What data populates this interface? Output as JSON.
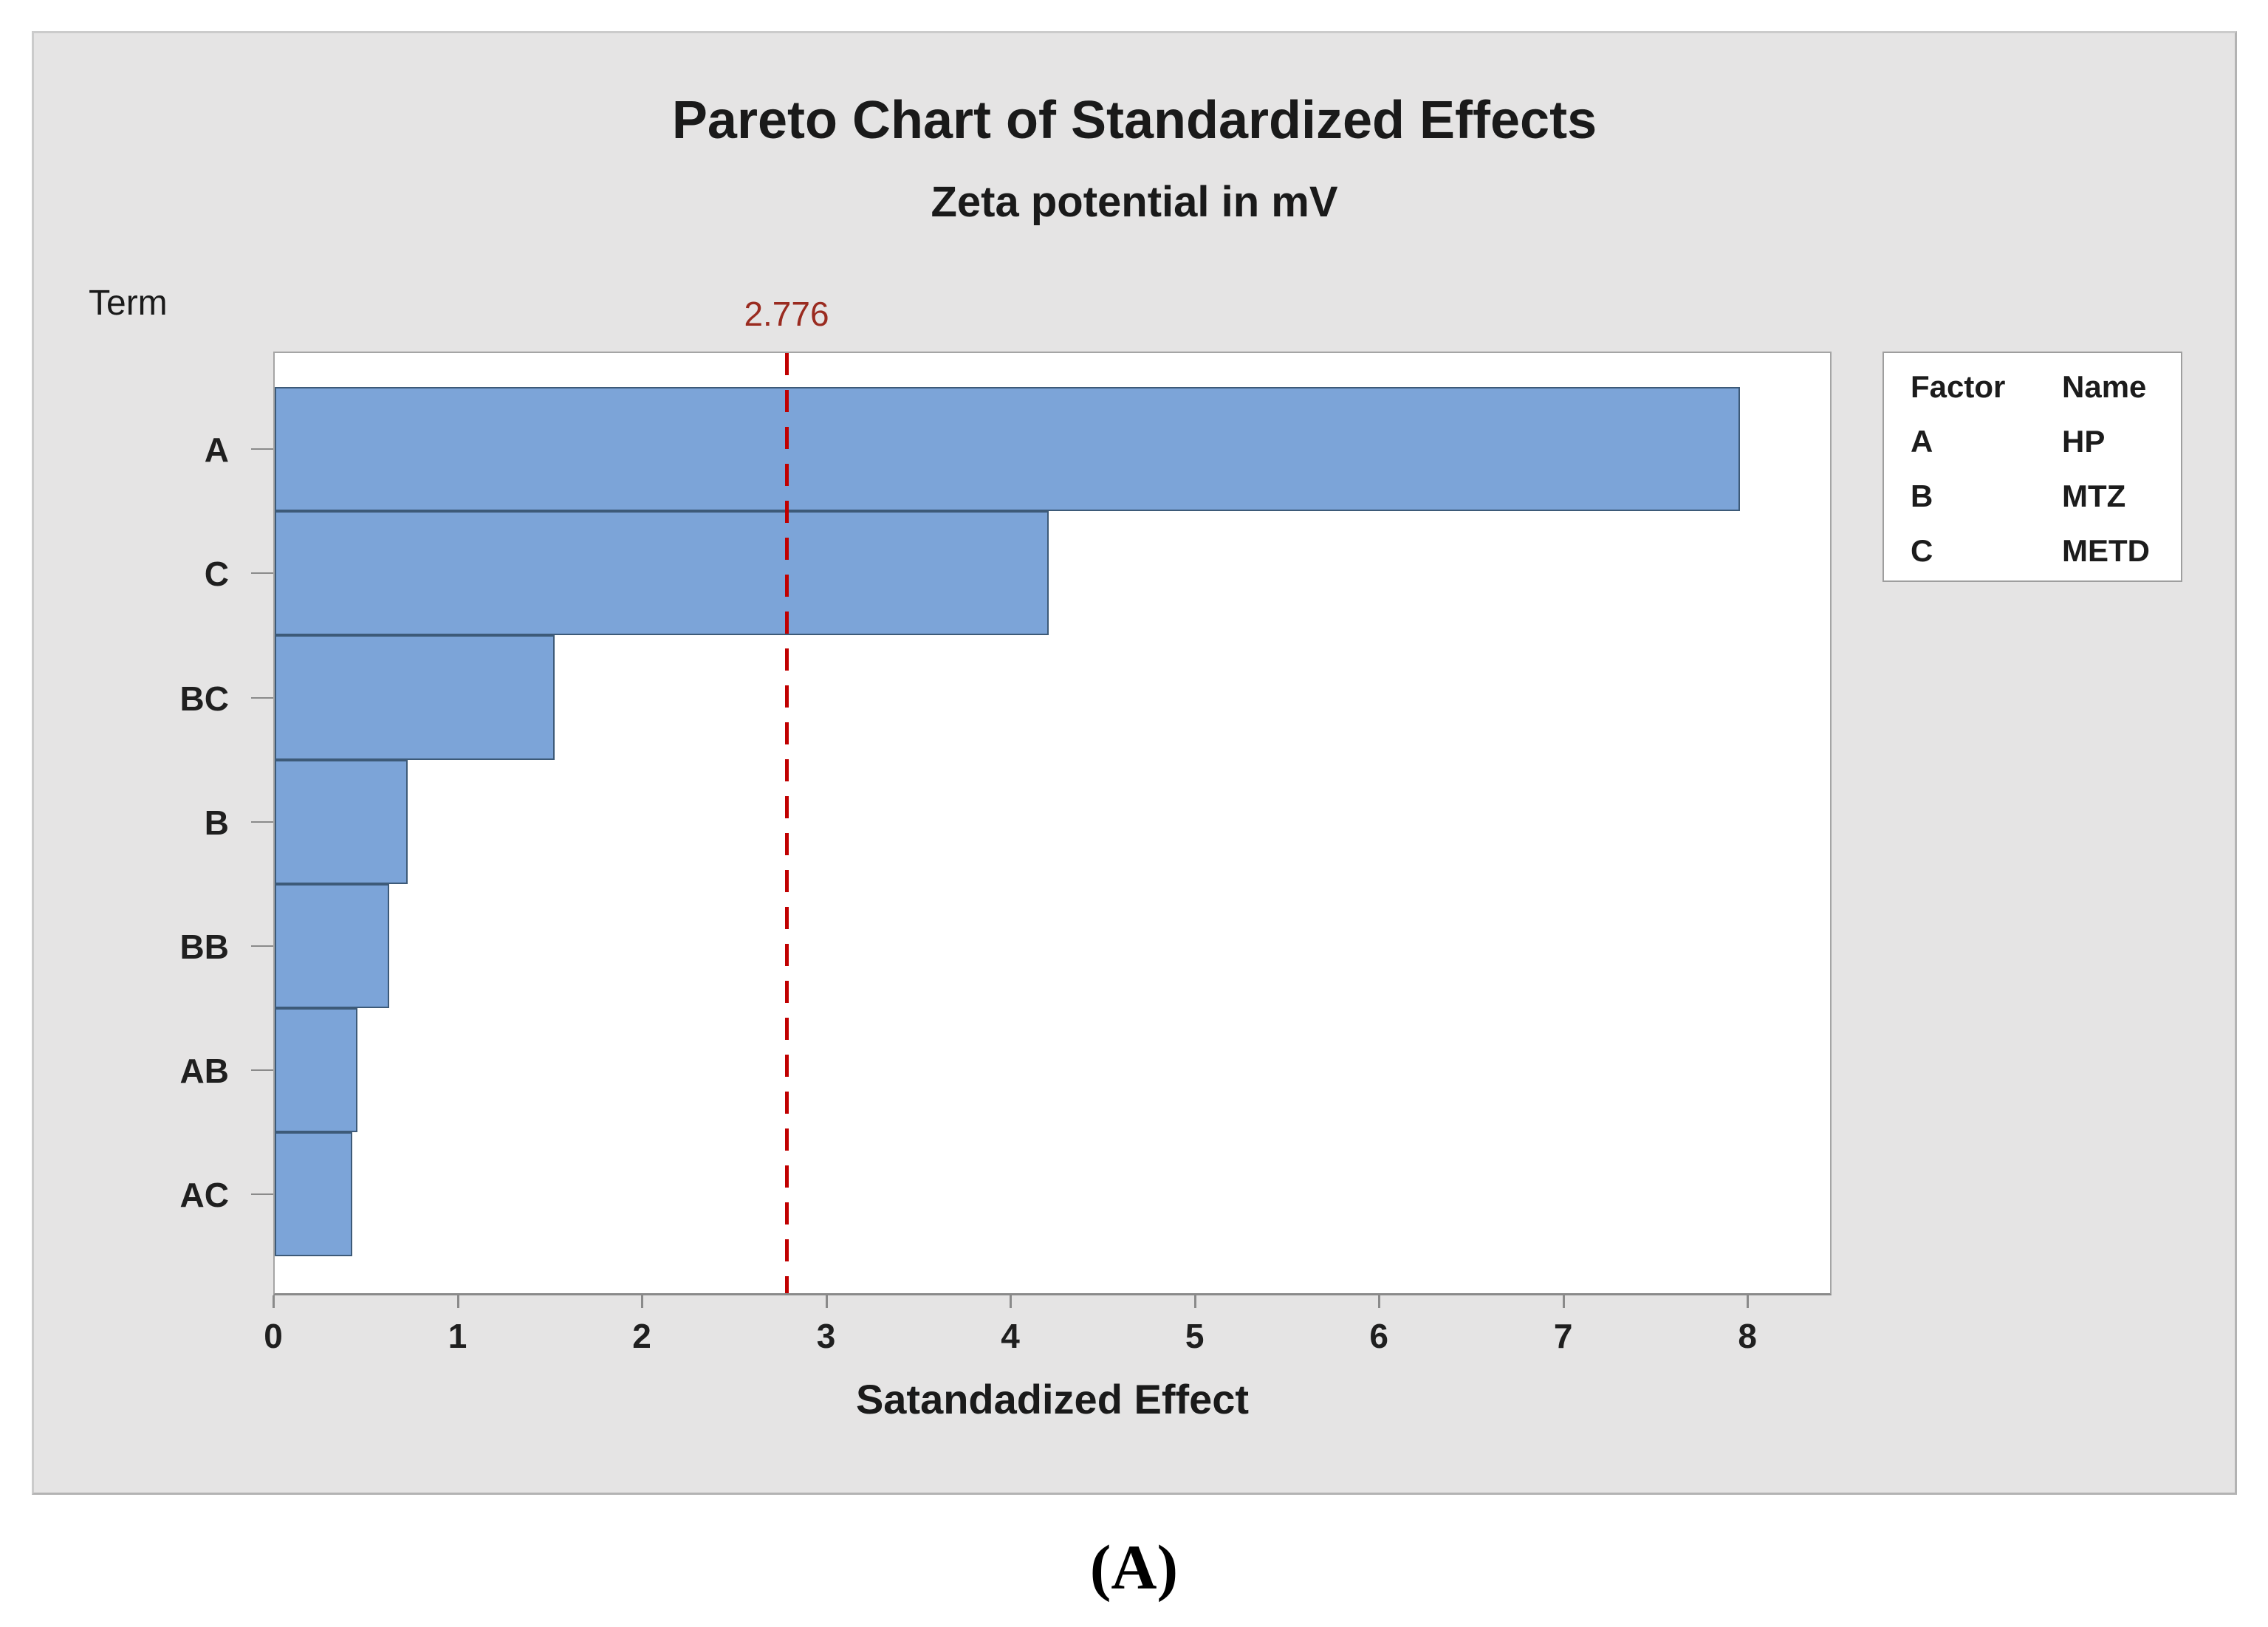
{
  "figure": {
    "title": "Pareto Chart of Standardized Effects",
    "subtitle": "Zeta potential in mV",
    "term_axis_label": "Term",
    "x_axis_label": "Satandadized Effect",
    "caption": "(A)"
  },
  "chart_data": {
    "type": "bar",
    "orientation": "horizontal",
    "title": "Pareto Chart of Standardized Effects",
    "subtitle": "Zeta potential in mV",
    "xlabel": "Satandadized Effect",
    "ylabel": "Term",
    "categories": [
      "A",
      "C",
      "BC",
      "B",
      "BB",
      "AB",
      "AC"
    ],
    "values": [
      7.95,
      4.2,
      1.52,
      0.72,
      0.62,
      0.45,
      0.42
    ],
    "x_ticks": [
      "0",
      "1",
      "2",
      "3",
      "4",
      "5",
      "6",
      "7",
      "8"
    ],
    "xlim": [
      0,
      8.44
    ],
    "grid": false,
    "reference_line": {
      "value": 2.776,
      "label": "2.776"
    },
    "colors": {
      "bar_fill": "#7ca4d8",
      "bar_border": "#3d5a78",
      "reference_line": "#c00000",
      "reference_label": "#9a2b20",
      "panel_background": "#e5e4e4",
      "plot_background": "#ffffff"
    },
    "legend_position": "right"
  },
  "legend": {
    "header": {
      "factor": "Factor",
      "name": "Name"
    },
    "rows": [
      {
        "factor": "A",
        "name": "HP"
      },
      {
        "factor": "B",
        "name": "MTZ"
      },
      {
        "factor": "C",
        "name": "METD"
      }
    ]
  }
}
